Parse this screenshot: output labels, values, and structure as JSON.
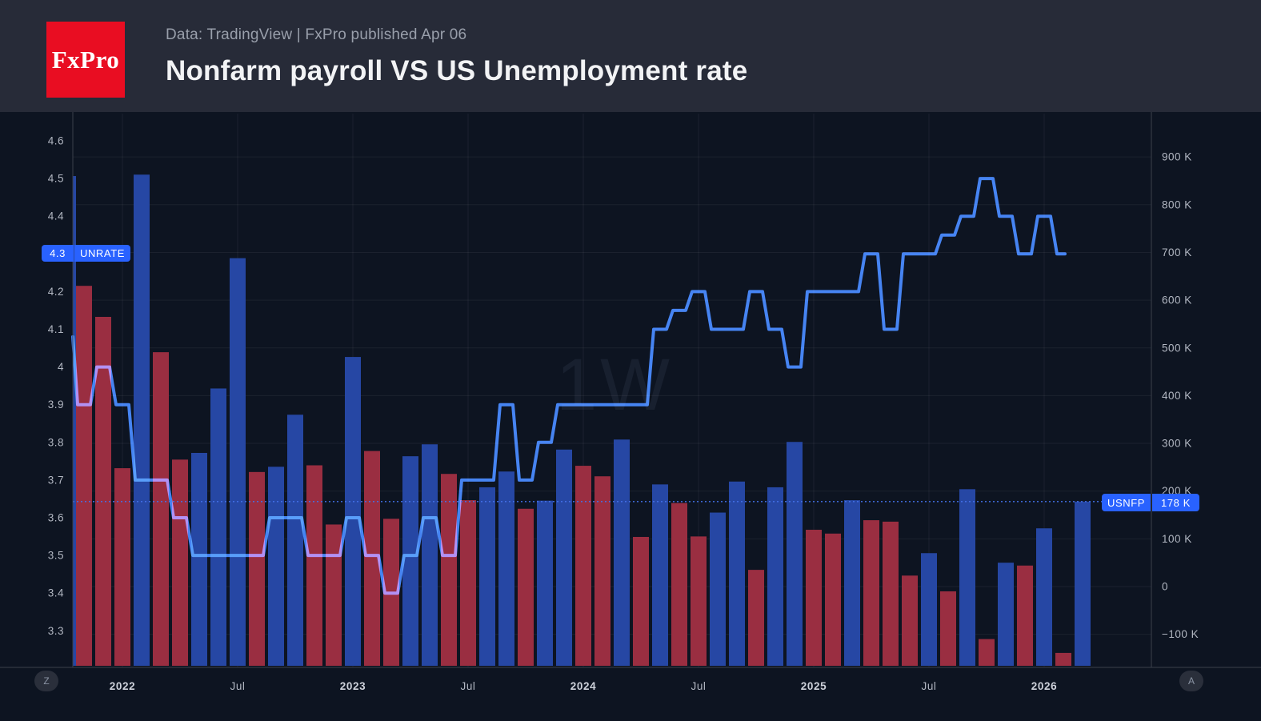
{
  "header": {
    "logo_text": "FxPro",
    "subtitle": "Data: TradingView | FxPro published Apr 06",
    "title": "Nonfarm payroll VS US Unemployment rate"
  },
  "chart": {
    "unrate_label": {
      "value": "4.3",
      "name": "UNRATE"
    },
    "usnfp_label": {
      "name": "USNFP",
      "value": "178 K"
    },
    "buttons": {
      "left": "Z",
      "right": "A"
    }
  },
  "chart_data": {
    "type": "bar+line",
    "timeframe_watermark": "1W",
    "series": [
      {
        "name": "USNFP",
        "type": "bar",
        "axis": "right",
        "unit": "K",
        "up_color": "#2647a4",
        "down_color": "#9a2e41",
        "values": [
          630,
          565,
          248,
          863,
          491,
          266,
          280,
          415,
          688,
          240,
          251,
          360,
          254,
          130,
          481,
          284,
          142,
          273,
          298,
          236,
          181,
          208,
          241,
          163,
          180,
          287,
          253,
          231,
          308,
          104,
          214,
          175,
          105,
          155,
          220,
          35,
          208,
          303,
          119,
          111,
          181,
          139,
          136,
          23,
          70,
          -10,
          204,
          -110,
          50,
          44,
          122,
          -139,
          178
        ],
        "last_value": 178,
        "partial_first_bar_value": 860
      },
      {
        "name": "UNRATE",
        "type": "line",
        "axis": "left",
        "color": "#3c79f0",
        "entry_value": 4.08,
        "values": [
          3.9,
          4.0,
          3.9,
          3.7,
          3.7,
          3.6,
          3.5,
          3.5,
          3.5,
          3.5,
          3.6,
          3.6,
          3.5,
          3.5,
          3.6,
          3.5,
          3.4,
          3.5,
          3.6,
          3.5,
          3.7,
          3.7,
          3.9,
          3.7,
          3.8,
          3.9,
          3.9,
          3.9,
          3.9,
          3.9,
          4.1,
          4.15,
          4.2,
          4.1,
          4.1,
          4.2,
          4.1,
          4.0,
          4.2,
          4.2,
          4.2,
          4.3,
          4.1,
          4.3,
          4.3,
          4.35,
          4.4,
          4.5,
          4.4,
          4.3,
          4.4,
          4.3
        ],
        "last_value": 4.3
      }
    ],
    "left_axis": {
      "ticks": [
        "4.6",
        "4.5",
        "4.4",
        "4.3",
        "4.2",
        "4.1",
        "4",
        "3.9",
        "3.8",
        "3.7",
        "3.6",
        "3.5",
        "3.4",
        "3.3"
      ],
      "range": [
        3.3,
        4.6
      ]
    },
    "right_axis": {
      "tick_values": [
        900,
        800,
        700,
        600,
        500,
        400,
        300,
        200,
        100,
        0,
        -100
      ],
      "tick_labels": [
        "900 K",
        "800 K",
        "700 K",
        "600 K",
        "500 K",
        "400 K",
        "300 K",
        "200 K",
        "100 K",
        "0",
        "−100 K"
      ]
    },
    "x_axis": {
      "labels": [
        {
          "text": "2022",
          "month_index": 2,
          "major": true
        },
        {
          "text": "Jul",
          "month_index": 8,
          "major": false
        },
        {
          "text": "2023",
          "month_index": 14,
          "major": true
        },
        {
          "text": "Jul",
          "month_index": 20,
          "major": false
        },
        {
          "text": "2024",
          "month_index": 26,
          "major": true
        },
        {
          "text": "Jul",
          "month_index": 32,
          "major": false
        },
        {
          "text": "2025",
          "month_index": 38,
          "major": true
        },
        {
          "text": "Jul",
          "month_index": 44,
          "major": false
        },
        {
          "text": "2026",
          "month_index": 50,
          "major": true
        }
      ]
    },
    "style": {
      "grid_color": "rgba(255,255,255,0.06)",
      "axis_border_color": "#3a404c",
      "axis_text_color": "#b2b7c2",
      "year_text_color": "#ced2db",
      "dotted_line_color": "#4472eb",
      "watermark_color": "rgba(170,184,212,0.08)",
      "background": "#0d1421"
    }
  }
}
